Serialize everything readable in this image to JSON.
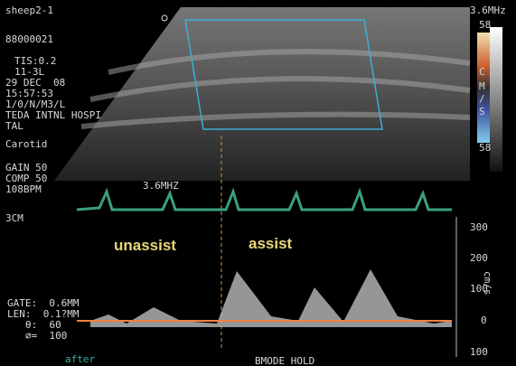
{
  "header": {
    "site": "sheep2-1",
    "id": "88000021",
    "tis": "TIS:0.2",
    "probe": "11-3L",
    "date": "29 DEC  08",
    "time": "15:57:53",
    "settings": "1/0/N/M3/L",
    "hospital": [
      "TEDA INTNL HOSPI",
      "TAL"
    ],
    "exam": "Carotid",
    "frequency": "3.6MHz"
  },
  "doppler_settings": {
    "gain": "GAIN 50",
    "comp": "COMP 50",
    "rate": "108BPM",
    "depth": "3CM",
    "frequency": "3.6MHZ"
  },
  "color_bar": {
    "top": "58",
    "letters": [
      "C",
      "M",
      "/",
      "S"
    ],
    "bottom": "58"
  },
  "annotations": {
    "left": "unassist",
    "right": "assist"
  },
  "gate": {
    "gate": "GATE:  0.6MM",
    "len": "LEN:  0.1?MM",
    "angle": "θ:  60",
    "filter": "⌀=  100"
  },
  "velocity_scale": {
    "unit": "cm/s",
    "ticks": [
      "300",
      "200",
      "100",
      "0",
      "100"
    ]
  },
  "footer": {
    "left": "after",
    "center": "BMODE HOLD"
  }
}
